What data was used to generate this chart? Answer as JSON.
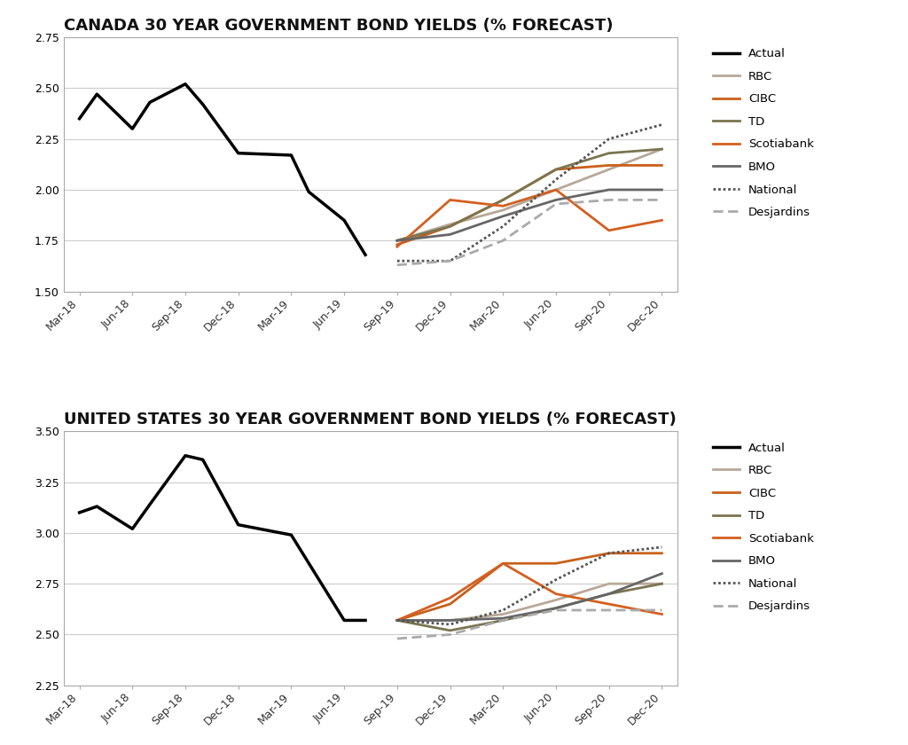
{
  "title1": "CANADA 30 YEAR GOVERNMENT BOND YIELDS (% FORECAST)",
  "title2": "UNITED STATES 30 YEAR GOVERNMENT BOND YIELDS (% FORECAST)",
  "x_labels": [
    "Mar-18",
    "Jun-18",
    "Sep-18",
    "Dec-18",
    "Mar-19",
    "Jun-19",
    "Sep-19",
    "Dec-19",
    "Mar-20",
    "Jun-20",
    "Sep-20",
    "Dec-20"
  ],
  "colors": {
    "actual": "#000000",
    "RBC": "#b8a898",
    "CIBC": "#c8601a",
    "TD": "#7a7550",
    "Scotia": "#d45f20",
    "BMO": "#666666",
    "National": "#555555",
    "Desjardins": "#aaaaaa"
  },
  "canada": {
    "actual_x": [
      0,
      0.33,
      1,
      1.33,
      2,
      2.33,
      3,
      4,
      4.33,
      5,
      5.4
    ],
    "actual_y": [
      2.35,
      2.47,
      2.3,
      2.43,
      2.52,
      2.42,
      2.18,
      2.17,
      1.99,
      1.85,
      1.68
    ],
    "forecast_x": [
      6,
      7,
      8,
      9,
      10,
      11
    ],
    "RBC_y": [
      1.75,
      1.83,
      1.9,
      2.0,
      2.1,
      2.2
    ],
    "CIBC_y": [
      1.73,
      1.82,
      1.95,
      2.1,
      2.12,
      2.12
    ],
    "TD_y": [
      1.75,
      1.82,
      1.95,
      2.1,
      2.18,
      2.2
    ],
    "Scotia_y": [
      1.72,
      1.95,
      1.92,
      2.0,
      1.8,
      1.85
    ],
    "BMO_y": [
      1.75,
      1.78,
      1.87,
      1.95,
      2.0,
      2.0
    ],
    "National_y": [
      1.65,
      1.65,
      1.82,
      2.05,
      2.25,
      2.32
    ],
    "Desj_y": [
      1.63,
      1.65,
      1.75,
      1.93,
      1.95,
      1.95
    ],
    "ylim": [
      1.5,
      2.75
    ],
    "yticks": [
      1.5,
      1.75,
      2.0,
      2.25,
      2.5,
      2.75
    ]
  },
  "us": {
    "actual_x": [
      0,
      0.33,
      1,
      1.33,
      2,
      2.33,
      3,
      4,
      5,
      5.4
    ],
    "actual_y": [
      3.1,
      3.13,
      3.02,
      3.14,
      3.38,
      3.36,
      3.04,
      2.99,
      2.57,
      2.57
    ],
    "forecast_x": [
      6,
      7,
      8,
      9,
      10,
      11
    ],
    "RBC_y": [
      2.57,
      2.57,
      2.6,
      2.67,
      2.75,
      2.75
    ],
    "CIBC_y": [
      2.57,
      2.65,
      2.85,
      2.85,
      2.9,
      2.9
    ],
    "TD_y": [
      2.57,
      2.52,
      2.57,
      2.63,
      2.7,
      2.75
    ],
    "Scotia_y": [
      2.57,
      2.68,
      2.85,
      2.7,
      2.65,
      2.6
    ],
    "BMO_y": [
      2.57,
      2.57,
      2.58,
      2.63,
      2.7,
      2.8
    ],
    "National_y": [
      2.57,
      2.55,
      2.62,
      2.77,
      2.9,
      2.93
    ],
    "Desj_y": [
      2.48,
      2.5,
      2.57,
      2.62,
      2.62,
      2.62
    ],
    "ylim": [
      2.25,
      3.5
    ],
    "yticks": [
      2.25,
      2.5,
      2.75,
      3.0,
      3.25,
      3.5
    ]
  },
  "bg_color": "#ffffff",
  "title_fontsize": 13,
  "tick_fontsize": 9,
  "legend_fontsize": 9.5,
  "line_width": 2.0
}
